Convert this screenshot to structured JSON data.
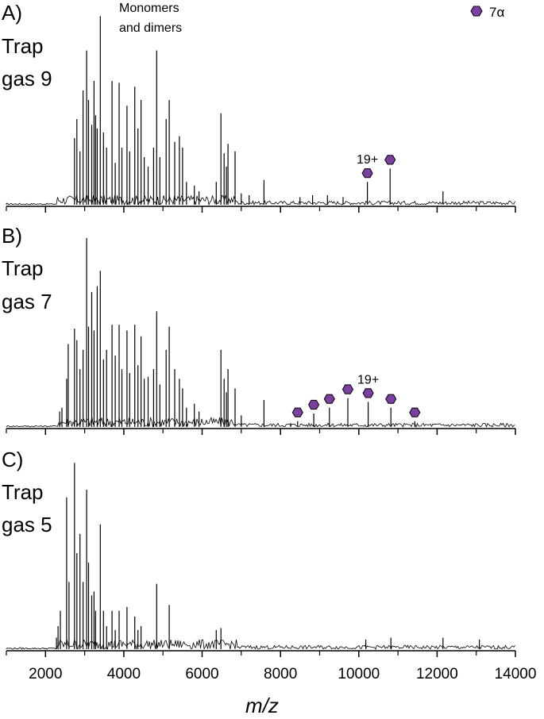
{
  "chart_data": {
    "type": "line",
    "shared_x_axis": {
      "label": "m/z",
      "range": [
        1000,
        14000
      ],
      "tick_labels": [
        "2000",
        "4000",
        "6000",
        "8000",
        "10000",
        "12000",
        "14000"
      ],
      "major_ticks": [
        2000,
        4000,
        6000,
        8000,
        10000,
        12000,
        14000
      ],
      "minor_ticks": [
        1000,
        3000,
        5000,
        7000,
        9000,
        11000,
        13000
      ]
    },
    "legend": {
      "symbol": "purple-hexagon",
      "label": "7α",
      "position": "top-right",
      "color": "#7b3fa0"
    },
    "annotations": {
      "top_note": "Monomers\nand dimers",
      "charge_label": "19+"
    },
    "panels": [
      {
        "label": "A)",
        "title_line1": "Trap",
        "title_line2": "gas 9",
        "peaks": [
          [
            2740,
            0.35
          ],
          [
            2800,
            0.45
          ],
          [
            2880,
            0.28
          ],
          [
            2960,
            0.6
          ],
          [
            3050,
            0.81
          ],
          [
            3100,
            0.55
          ],
          [
            3180,
            0.42
          ],
          [
            3240,
            0.65
          ],
          [
            3280,
            0.47
          ],
          [
            3320,
            0.4
          ],
          [
            3400,
            0.99
          ],
          [
            3480,
            0.38
          ],
          [
            3560,
            0.3
          ],
          [
            3700,
            0.65
          ],
          [
            3780,
            0.22
          ],
          [
            3880,
            0.64
          ],
          [
            3950,
            0.3
          ],
          [
            4080,
            0.52
          ],
          [
            4150,
            0.28
          ],
          [
            4280,
            0.62
          ],
          [
            4360,
            0.4
          ],
          [
            4440,
            0.55
          ],
          [
            4520,
            0.25
          ],
          [
            4620,
            0.2
          ],
          [
            4760,
            0.3
          ],
          [
            4840,
            0.81
          ],
          [
            4920,
            0.25
          ],
          [
            5080,
            0.45
          ],
          [
            5160,
            0.55
          ],
          [
            5300,
            0.33
          ],
          [
            5420,
            0.36
          ],
          [
            5500,
            0.3
          ],
          [
            5600,
            0.12
          ],
          [
            5800,
            0.1
          ],
          [
            5920,
            0.07
          ],
          [
            6360,
            0.12
          ],
          [
            6480,
            0.48
          ],
          [
            6560,
            0.27
          ],
          [
            6620,
            0.2
          ],
          [
            6660,
            0.32
          ],
          [
            6840,
            0.28
          ],
          [
            7000,
            0.06
          ],
          [
            7200,
            0.05
          ],
          [
            7580,
            0.13
          ],
          [
            8500,
            0.04
          ],
          [
            8820,
            0.05
          ],
          [
            9200,
            0.05
          ],
          [
            9600,
            0.04
          ],
          [
            10220,
            0.12
          ],
          [
            10800,
            0.19
          ],
          [
            12150,
            0.07
          ]
        ],
        "hexagon_markers": [
          {
            "mz": 10220,
            "peak_height": 0.12,
            "charge": "19+"
          },
          {
            "mz": 10800,
            "peak_height": 0.19
          }
        ]
      },
      {
        "label": "B)",
        "title_line1": "Trap",
        "title_line2": "gas 7",
        "peaks": [
          [
            2360,
            0.08
          ],
          [
            2420,
            0.1
          ],
          [
            2540,
            0.25
          ],
          [
            2580,
            0.43
          ],
          [
            2740,
            0.51
          ],
          [
            2800,
            0.45
          ],
          [
            2880,
            0.3
          ],
          [
            2960,
            0.4
          ],
          [
            3050,
            0.98
          ],
          [
            3100,
            0.52
          ],
          [
            3180,
            0.7
          ],
          [
            3240,
            0.5
          ],
          [
            3320,
            0.73
          ],
          [
            3400,
            0.81
          ],
          [
            3480,
            0.35
          ],
          [
            3560,
            0.4
          ],
          [
            3700,
            0.53
          ],
          [
            3780,
            0.37
          ],
          [
            3880,
            0.53
          ],
          [
            3950,
            0.3
          ],
          [
            4080,
            0.5
          ],
          [
            4150,
            0.28
          ],
          [
            4280,
            0.53
          ],
          [
            4360,
            0.32
          ],
          [
            4440,
            0.47
          ],
          [
            4520,
            0.25
          ],
          [
            4620,
            0.26
          ],
          [
            4760,
            0.3
          ],
          [
            4840,
            0.6
          ],
          [
            4920,
            0.22
          ],
          [
            5080,
            0.4
          ],
          [
            5160,
            0.52
          ],
          [
            5300,
            0.3
          ],
          [
            5420,
            0.25
          ],
          [
            5500,
            0.2
          ],
          [
            5600,
            0.1
          ],
          [
            5800,
            0.12
          ],
          [
            5920,
            0.08
          ],
          [
            6480,
            0.4
          ],
          [
            6560,
            0.25
          ],
          [
            6620,
            0.18
          ],
          [
            6660,
            0.3
          ],
          [
            6840,
            0.2
          ],
          [
            7000,
            0.06
          ],
          [
            7580,
            0.14
          ],
          [
            8260,
            0.02
          ],
          [
            8440,
            0.03
          ],
          [
            8850,
            0.07
          ],
          [
            9250,
            0.1
          ],
          [
            9720,
            0.15
          ],
          [
            10240,
            0.13
          ],
          [
            10820,
            0.1
          ],
          [
            11430,
            0.03
          ]
        ],
        "hexagon_markers": [
          {
            "mz": 8440,
            "peak_height": 0.03
          },
          {
            "mz": 8850,
            "peak_height": 0.07
          },
          {
            "mz": 9250,
            "peak_height": 0.1
          },
          {
            "mz": 9720,
            "peak_height": 0.15
          },
          {
            "mz": 10240,
            "peak_height": 0.13,
            "charge": "19+"
          },
          {
            "mz": 10820,
            "peak_height": 0.1
          },
          {
            "mz": 11430,
            "peak_height": 0.03
          }
        ]
      },
      {
        "label": "C)",
        "title_line1": "Trap",
        "title_line2": "gas 5",
        "peaks": [
          [
            2280,
            0.06
          ],
          [
            2320,
            0.12
          ],
          [
            2380,
            0.2
          ],
          [
            2540,
            0.79
          ],
          [
            2600,
            0.35
          ],
          [
            2740,
            0.97
          ],
          [
            2800,
            0.5
          ],
          [
            2880,
            0.6
          ],
          [
            2960,
            0.35
          ],
          [
            3050,
            0.83
          ],
          [
            3100,
            0.45
          ],
          [
            3180,
            0.28
          ],
          [
            3240,
            0.3
          ],
          [
            3280,
            0.2
          ],
          [
            3400,
            0.65
          ],
          [
            3480,
            0.2
          ],
          [
            3560,
            0.12
          ],
          [
            3700,
            0.2
          ],
          [
            3780,
            0.1
          ],
          [
            3880,
            0.2
          ],
          [
            4080,
            0.22
          ],
          [
            4280,
            0.17
          ],
          [
            4360,
            0.1
          ],
          [
            4440,
            0.12
          ],
          [
            4840,
            0.34
          ],
          [
            5160,
            0.23
          ],
          [
            6360,
            0.1
          ],
          [
            6480,
            0.11
          ],
          [
            10180,
            0.05
          ],
          [
            10820,
            0.06
          ],
          [
            12150,
            0.06
          ],
          [
            13080,
            0.05
          ]
        ],
        "hexagon_markers": []
      }
    ]
  }
}
